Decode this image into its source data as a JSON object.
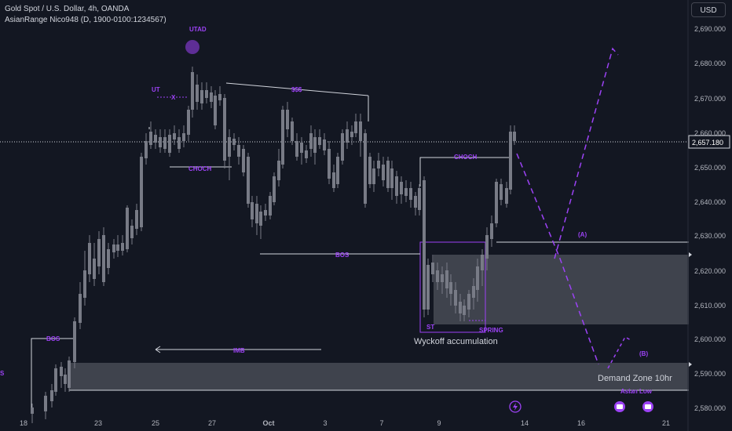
{
  "header": {
    "symbol_line": "Gold Spot / U.S. Dollar, 4h, OANDA",
    "indicator_line": "AsianRange Nico948 (D, 1900-0100:1234567)",
    "currency_button": "USD"
  },
  "price_scale": {
    "ticks": [
      "2,690.000",
      "2,680.000",
      "2,670.000",
      "2,660.000",
      "2,650.000",
      "2,640.000",
      "2,630.000",
      "2,620.000",
      "2,610.000",
      "2,600.000",
      "2,590.000",
      "2,580.000"
    ],
    "last_price": "2,657.180",
    "last_price_value": 2657.18
  },
  "time_axis": {
    "labels": [
      "18",
      "23",
      "25",
      "27",
      "Oct",
      "3",
      "7",
      "9",
      "14",
      "16",
      "21"
    ]
  },
  "annotations": {
    "utad": "UTAD",
    "ut": "UT",
    "x_mark": "X",
    "liquidity": "$$$",
    "choch_left": "CHOCH",
    "choch_right": "CHOCH",
    "bos_left": "BOS",
    "bos_mid": "BOS",
    "imb": "IMB",
    "st": "ST",
    "spring": "SPRING",
    "wyckoff": "Wyckoff accumulation",
    "level_a": "(A)",
    "level_b": "(B)",
    "demand_zone": "Demand Zone 10hr",
    "asian_low": "Asian Low",
    "edge_label": "S"
  },
  "colors": {
    "background": "#131722",
    "bull_candle": "#ffffff",
    "bear_candle": "#787b86",
    "annotation": "#9c42f5",
    "text": "#d1d4dc",
    "zone_fill": "#5d606b"
  }
}
